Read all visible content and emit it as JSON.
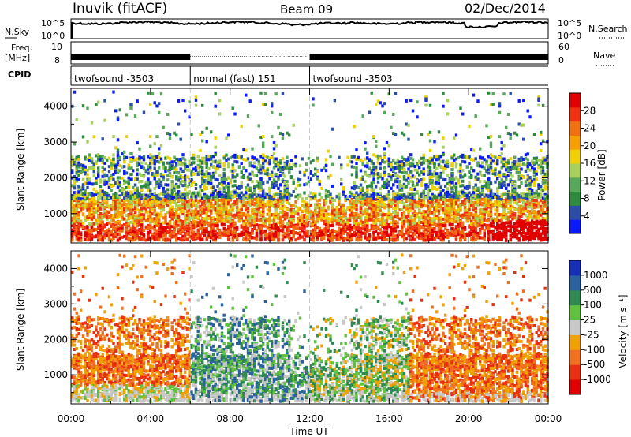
{
  "header": {
    "title": "Inuvik (fitACF)",
    "beam": "Beam 09",
    "date": "02/Dec/2014"
  },
  "left_labels": {
    "nsky": "N.Sky",
    "freq": "Freq.",
    "freq_unit": "[MHz]",
    "cpid": "CPID"
  },
  "right_labels": {
    "nsearch": "N.Search",
    "nave": "Nave"
  },
  "noise_ticks_left": [
    "10^5",
    "10^0"
  ],
  "noise_ticks_right": [
    "10^5",
    "10^0"
  ],
  "freq_ticks_left": [
    "10",
    "8"
  ],
  "freq_ticks_right": [
    "60",
    "0"
  ],
  "cpid_segments": [
    {
      "label": "twofsound -3503",
      "start_hour": 0,
      "end_hour": 6
    },
    {
      "label": "normal (fast) 151",
      "start_hour": 6,
      "end_hour": 12
    },
    {
      "label": "twofsound -3503",
      "start_hour": 12,
      "end_hour": 24
    }
  ],
  "xaxis": {
    "label": "Time UT",
    "ticks": [
      "00:00",
      "04:00",
      "08:00",
      "12:00",
      "16:00",
      "20:00",
      "00:00"
    ]
  },
  "panels": {
    "power": {
      "ylabel": "Slant Range [km]",
      "yticks": [
        "4000",
        "3000",
        "2000",
        "1000"
      ],
      "colorbar_label": "Power [dB]",
      "colorbar_ticks": [
        "28",
        "24",
        "20",
        "16",
        "12",
        "8",
        "4"
      ]
    },
    "velocity": {
      "ylabel": "Slant Range [km]",
      "yticks": [
        "4000",
        "3000",
        "2000",
        "1000"
      ],
      "colorbar_label": "Velocity [m s⁻¹]",
      "colorbar_ticks": [
        "1000",
        "500",
        "100",
        "25",
        "-25",
        "-100",
        "-500",
        "-1000"
      ]
    }
  },
  "colors": {
    "power_scale": [
      "#0a1aff",
      "#2b4fa6",
      "#2e8a3c",
      "#58a85a",
      "#a6d05a",
      "#f0d000",
      "#f5a000",
      "#f07010",
      "#f03010",
      "#e00000"
    ],
    "velocity_scale": [
      "#1730b8",
      "#2a62a0",
      "#2e8a50",
      "#60c040",
      "#c8c8c8",
      "#f0a000",
      "#f07020",
      "#e83010",
      "#e00000"
    ]
  },
  "chart_data": [
    {
      "type": "line",
      "title": "Inuvik (fitACF)",
      "xlabel": "Time UT",
      "ylabel": "N.Sky",
      "x": [
        "00:00",
        "04:00",
        "08:00",
        "12:00",
        "16:00",
        "20:00",
        "00:00"
      ],
      "yscale": "log",
      "ylim": [
        1,
        100000
      ]
    },
    {
      "type": "heatmap",
      "title": "Beam 09",
      "xlabel": "Time UT",
      "ylabel": "Slant Range [km]",
      "xlim": [
        0,
        24
      ],
      "ylim": [
        180,
        4500
      ],
      "colorbar": {
        "label": "Power [dB]",
        "range": [
          0,
          30
        ],
        "ticks": [
          4,
          8,
          12,
          16,
          20,
          24,
          28
        ]
      }
    },
    {
      "type": "heatmap",
      "xlabel": "Time UT",
      "ylabel": "Slant Range [km]",
      "xlim": [
        0,
        24
      ],
      "ylim": [
        180,
        4500
      ],
      "colorbar": {
        "label": "Velocity [m s⁻¹]",
        "ticks": [
          1000,
          500,
          100,
          25,
          -25,
          -100,
          -500,
          -1000
        ]
      }
    }
  ]
}
